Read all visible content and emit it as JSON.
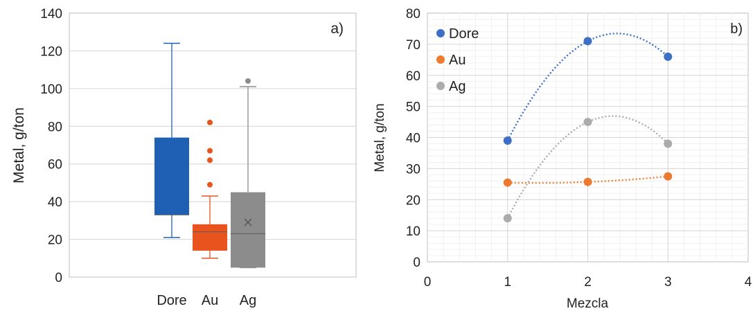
{
  "chart_data": [
    {
      "type": "box",
      "panel_label": "a)",
      "ylabel": "Metal, g/ton",
      "ylim": [
        0,
        140
      ],
      "yticks": [
        0,
        20,
        40,
        60,
        80,
        100,
        120,
        140
      ],
      "grid": true,
      "categories": [
        "Dore",
        "Au",
        "Ag"
      ],
      "boxes": [
        {
          "name": "Dore",
          "color": "#1f5fb4",
          "min": 21,
          "q1": 33,
          "median": 33,
          "q3": 74,
          "max": 124,
          "mean": null,
          "outliers": []
        },
        {
          "name": "Au",
          "color": "#e8531e",
          "min": 10,
          "q1": 14,
          "median": 24,
          "q3": 28,
          "max": 43,
          "mean": null,
          "outliers": [
            49,
            62,
            67,
            82
          ]
        },
        {
          "name": "Ag",
          "color": "#8c8c8c",
          "min": 5,
          "q1": 5,
          "median": 23,
          "q3": 45,
          "max": 101,
          "mean": 29,
          "outliers": [
            104
          ]
        }
      ]
    },
    {
      "type": "scatter",
      "panel_label": "b)",
      "xlabel": "Mezcla",
      "ylabel": "Metal, g/ton",
      "xlim": [
        0,
        4
      ],
      "ylim": [
        0,
        80
      ],
      "xticks": [
        0,
        1,
        2,
        3,
        4
      ],
      "yticks": [
        0,
        10,
        20,
        30,
        40,
        50,
        60,
        70,
        80
      ],
      "grid": true,
      "legend": "top-left",
      "trendline": "polynomial-dotted",
      "x": [
        1,
        2,
        3
      ],
      "series": [
        {
          "name": "Dore",
          "color": "#3d6fc4",
          "values": [
            39,
            71,
            66
          ]
        },
        {
          "name": "Au",
          "color": "#ec7b30",
          "values": [
            25.5,
            25.7,
            27.5
          ]
        },
        {
          "name": "Ag",
          "color": "#ababab",
          "values": [
            14,
            45,
            38
          ]
        }
      ]
    }
  ]
}
